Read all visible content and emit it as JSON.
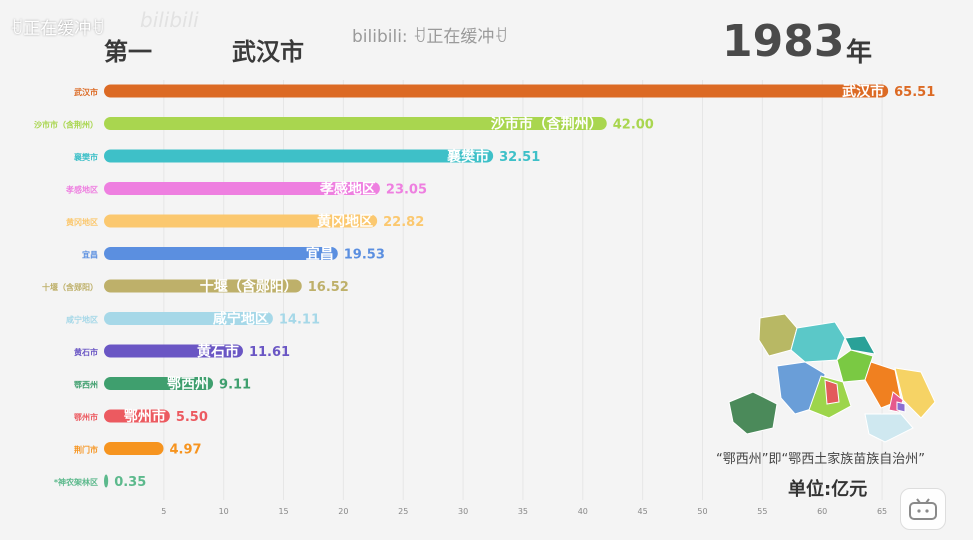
{
  "header": {
    "buffer_text": "ꀀ正在缓冲ꀀ",
    "watermark_text": "bilibili: ꀀ正在缓冲ꀀ",
    "rank_label": "第一",
    "leader_name": "武汉市",
    "year": "1983",
    "year_unit": "年"
  },
  "footer": {
    "map_caption": "“鄂西州”即“鄂西土家族苗族自治州”",
    "unit_label": "单位:亿元"
  },
  "map": {
    "region_colors": [
      "#b8b864",
      "#5bc8c8",
      "#7ac943",
      "#2aa198",
      "#6a9ed8",
      "#9dd54b",
      "#f08020",
      "#e65a8c",
      "#4b8a5a",
      "#f6d365",
      "#e35b5b",
      "#8a6fd1",
      "#cfe8f0"
    ]
  },
  "chart_data": {
    "type": "bar",
    "orientation": "horizontal",
    "categories": [
      "武汉市",
      "沙市市（含荆州）",
      "襄樊市",
      "孝感地区",
      "黄冈地区",
      "宜昌",
      "十堰（含郧阳）",
      "咸宁地区",
      "黄石市",
      "鄂西州",
      "鄂州市",
      "荆门市",
      "*神农架林区"
    ],
    "bar_labels": [
      "武汉市",
      "沙市市（含荆州）",
      "襄樊市",
      "孝感地区",
      "黄冈地区",
      "宜昌",
      "十堰（含郧阳）",
      "咸宁地区",
      "黄石市",
      "鄂西州",
      "鄂州市",
      "",
      ""
    ],
    "values": [
      65.51,
      42.0,
      32.51,
      23.05,
      22.82,
      19.53,
      16.52,
      14.11,
      11.61,
      9.11,
      5.5,
      4.97,
      0.35
    ],
    "value_labels": [
      "65.51",
      "42.00",
      "32.51",
      "23.05",
      "22.82",
      "19.53",
      "16.52",
      "14.11",
      "11.61",
      "9.11",
      "5.50",
      "4.97",
      "0.35"
    ],
    "colors": [
      "#dc6a24",
      "#a9d64f",
      "#3ec0c8",
      "#ee7fe0",
      "#fbc86f",
      "#5b8fe0",
      "#beb06a",
      "#a6d8e8",
      "#6a56c4",
      "#3f9f6e",
      "#ec5a60",
      "#f6941f",
      "#5cb98c"
    ],
    "xticks": [
      5,
      10,
      15,
      20,
      25,
      30,
      35,
      40,
      45,
      50,
      55,
      60,
      65
    ],
    "xlim": [
      0,
      65
    ],
    "grid": true
  }
}
